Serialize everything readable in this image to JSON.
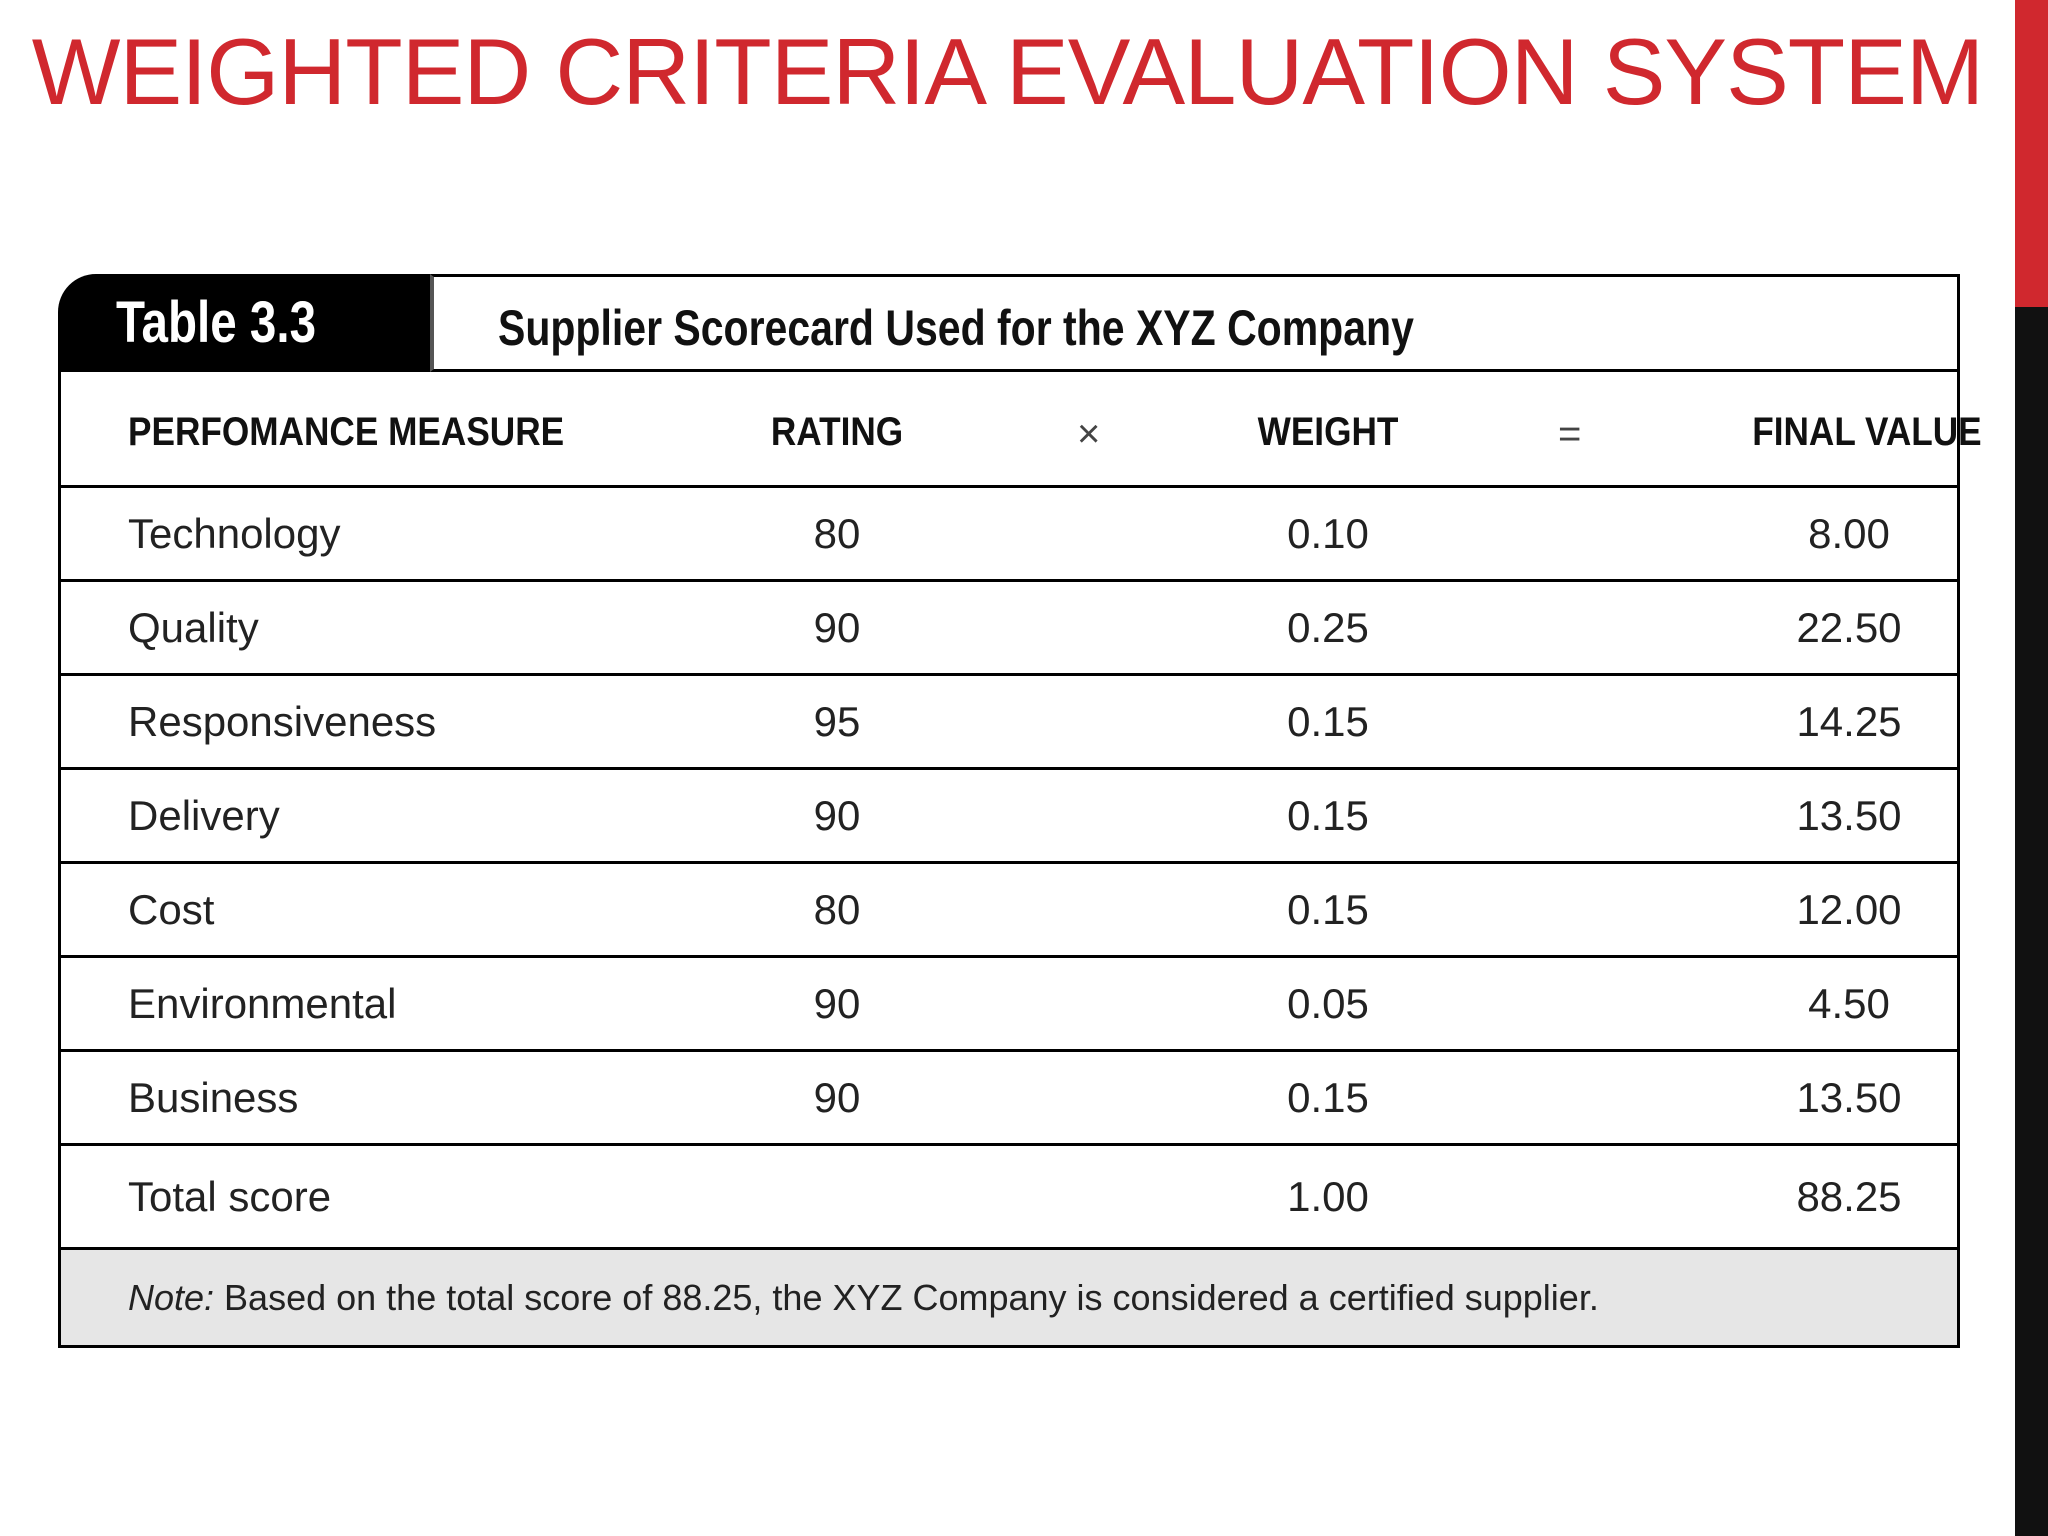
{
  "slide": {
    "title": "WEIGHTED CRITERIA EVALUATION SYSTEM"
  },
  "table": {
    "tag": "Table 3.3",
    "caption": "Supplier Scorecard Used for the XYZ Company",
    "headers": {
      "measure": "PERFOMANCE MEASURE",
      "rating": "RATING",
      "times": "×",
      "weight": "WEIGHT",
      "equals": "=",
      "final": "FINAL VALUE"
    },
    "rows": [
      {
        "measure": "Technology",
        "rating": "80",
        "weight": "0.10",
        "final": "8.00"
      },
      {
        "measure": "Quality",
        "rating": "90",
        "weight": "0.25",
        "final": "22.50"
      },
      {
        "measure": "Responsiveness",
        "rating": "95",
        "weight": "0.15",
        "final": "14.25"
      },
      {
        "measure": "Delivery",
        "rating": "90",
        "weight": "0.15",
        "final": "13.50"
      },
      {
        "measure": "Cost",
        "rating": "80",
        "weight": "0.15",
        "final": "12.00"
      },
      {
        "measure": "Environmental",
        "rating": "90",
        "weight": "0.05",
        "final": "4.50"
      },
      {
        "measure": "Business",
        "rating": "90",
        "weight": "0.15",
        "final": "13.50"
      }
    ],
    "total": {
      "measure": "Total score",
      "rating": "",
      "weight": "1.00",
      "final": "88.25"
    },
    "note": {
      "label": "Note:",
      "text": "Based on the total score of 88.25, the XYZ Company is considered a certified supplier."
    }
  },
  "colors": {
    "title_red": "#d0282e",
    "side_bar": "#111111",
    "note_bg": "#e6e6e6"
  }
}
